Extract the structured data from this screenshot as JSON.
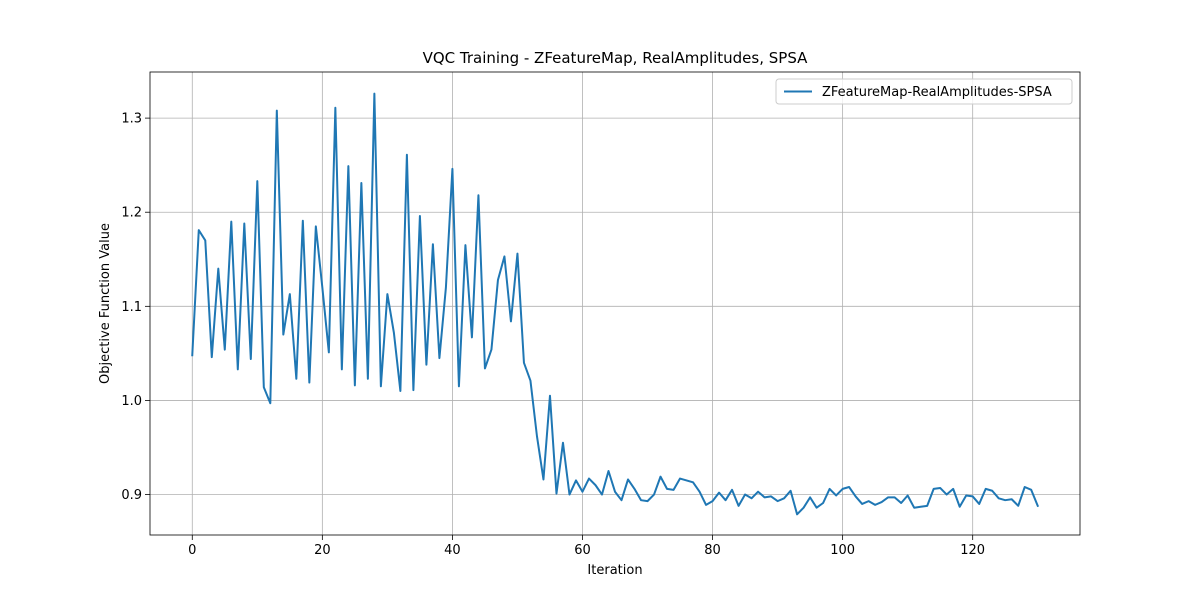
{
  "chart_data": {
    "type": "line",
    "title": "VQC Training - ZFeatureMap, RealAmplitudes, SPSA",
    "xlabel": "Iteration",
    "ylabel": "Objective Function Value",
    "xlim": [
      -6.5,
      136.5
    ],
    "ylim": [
      0.857,
      1.349
    ],
    "xticks": [
      0,
      20,
      40,
      60,
      80,
      100,
      120
    ],
    "yticks": [
      0.9,
      1.0,
      1.1,
      1.2,
      1.3
    ],
    "xtick_labels": [
      "0",
      "20",
      "40",
      "60",
      "80",
      "100",
      "120"
    ],
    "ytick_labels": [
      "0.9",
      "1.0",
      "1.1",
      "1.2",
      "1.3"
    ],
    "grid": true,
    "legend_position": "upper right",
    "series": [
      {
        "name": "ZFeatureMap-RealAmplitudes-SPSA",
        "color": "#1f77b4",
        "x": [
          0,
          1,
          2,
          3,
          4,
          5,
          6,
          7,
          8,
          9,
          10,
          11,
          12,
          13,
          14,
          15,
          16,
          17,
          18,
          19,
          20,
          21,
          22,
          23,
          24,
          25,
          26,
          27,
          28,
          29,
          30,
          31,
          32,
          33,
          34,
          35,
          36,
          37,
          38,
          39,
          40,
          41,
          42,
          43,
          44,
          45,
          46,
          47,
          48,
          49,
          50,
          51,
          52,
          53,
          54,
          55,
          56,
          57,
          58,
          59,
          60,
          61,
          62,
          63,
          64,
          65,
          66,
          67,
          68,
          69,
          70,
          71,
          72,
          73,
          74,
          75,
          76,
          77,
          78,
          79,
          80,
          81,
          82,
          83,
          84,
          85,
          86,
          87,
          88,
          89,
          90,
          91,
          92,
          93,
          94,
          95,
          96,
          97,
          98,
          99,
          100,
          101,
          102,
          103,
          104,
          105,
          106,
          107,
          108,
          109,
          110,
          111,
          112,
          113,
          114,
          115,
          116,
          117,
          118,
          119,
          120,
          121,
          122,
          123,
          124,
          125,
          126,
          127,
          128,
          129,
          130
        ],
        "values": [
          1.048,
          1.181,
          1.17,
          1.046,
          1.14,
          1.054,
          1.19,
          1.033,
          1.188,
          1.044,
          1.233,
          1.014,
          0.997,
          1.308,
          1.07,
          1.113,
          1.023,
          1.191,
          1.019,
          1.185,
          1.12,
          1.051,
          1.311,
          1.033,
          1.249,
          1.016,
          1.231,
          1.023,
          1.326,
          1.015,
          1.113,
          1.072,
          1.01,
          1.261,
          1.011,
          1.196,
          1.038,
          1.166,
          1.045,
          1.12,
          1.246,
          1.015,
          1.165,
          1.067,
          1.218,
          1.034,
          1.054,
          1.128,
          1.153,
          1.084,
          1.156,
          1.04,
          1.021,
          0.962,
          0.916,
          1.005,
          0.901,
          0.955,
          0.9,
          0.915,
          0.903,
          0.917,
          0.91,
          0.9,
          0.925,
          0.903,
          0.894,
          0.916,
          0.906,
          0.894,
          0.893,
          0.9,
          0.919,
          0.906,
          0.905,
          0.917,
          0.915,
          0.913,
          0.903,
          0.889,
          0.893,
          0.902,
          0.894,
          0.905,
          0.888,
          0.9,
          0.896,
          0.903,
          0.897,
          0.898,
          0.893,
          0.896,
          0.904,
          0.879,
          0.886,
          0.897,
          0.886,
          0.891,
          0.906,
          0.899,
          0.906,
          0.908,
          0.898,
          0.89,
          0.893,
          0.889,
          0.892,
          0.897,
          0.897,
          0.891,
          0.899,
          0.886,
          0.887,
          0.888,
          0.906,
          0.907,
          0.9,
          0.906,
          0.887,
          0.899,
          0.898,
          0.89,
          0.906,
          0.904,
          0.896,
          0.894,
          0.895,
          0.888,
          0.908,
          0.905,
          0.888
        ]
      }
    ]
  }
}
